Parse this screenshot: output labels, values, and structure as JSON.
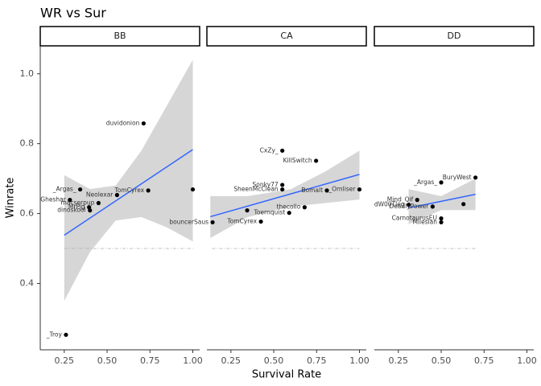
{
  "chart_data": {
    "type": "scatter",
    "title": "WR vs Sur",
    "x_label": "Survival Rate",
    "y_label": "Winrate",
    "xlim": [
      0.11,
      1.04
    ],
    "ylim": [
      0.21,
      1.08
    ],
    "xticks": [
      0.25,
      {
        "value": 0.5,
        "label": "0.50"
      },
      0.75,
      {
        "value": 1.0,
        "label": "1.00"
      }
    ],
    "yticks": [
      0.4,
      0.6,
      0.8,
      {
        "value": 1.0,
        "label": "1.0"
      }
    ],
    "point_color": "#000000",
    "fit_color": "#3366ff",
    "band_color": "#d6d6d6",
    "ref_color": "#aaaaaa",
    "panels": [
      {
        "name": "BB",
        "points": {
          "x": [
            0.713,
            0.343,
            0.283,
            0.45,
            0.395,
            0.4,
            0.558,
            0.74,
            1.0,
            0.26
          ],
          "y": [
            0.858,
            0.669,
            0.639,
            0.63,
            0.618,
            0.609,
            0.653,
            0.666,
            0.669,
            0.253
          ],
          "labels": [
            "duvidonion",
            "_Argas_",
            "Gheshar",
            "macserpup",
            "MrPig",
            "dinoskool",
            "Neolexar",
            "TomCyrex",
            null,
            "_Troy"
          ]
        },
        "fit": {
          "x": [
            0.25,
            1.0
          ],
          "y": [
            0.538,
            0.783
          ]
        },
        "band": {
          "x": [
            0.25,
            0.4,
            0.55,
            0.7,
            0.85,
            1.0
          ],
          "lower": [
            0.35,
            0.49,
            0.58,
            0.59,
            0.56,
            0.52
          ],
          "upper": [
            0.71,
            0.67,
            0.68,
            0.78,
            0.91,
            1.04
          ]
        },
        "ref_line": {
          "x": [
            0.25,
            1.0
          ],
          "y": 0.5
        }
      },
      {
        "name": "CA",
        "points": {
          "x": [
            0.55,
            0.747,
            0.55,
            0.55,
            0.81,
            1.0,
            0.68,
            0.59,
            0.143,
            0.425,
            0.345
          ],
          "y": [
            0.78,
            0.751,
            0.682,
            0.669,
            0.666,
            0.669,
            0.618,
            0.602,
            0.575,
            0.577,
            0.609
          ],
          "labels": [
            "CxZy_",
            "KillSwitch",
            "Sonky77",
            "SheenMcClean",
            "Bomalt",
            "_Ornliser",
            "thecollo",
            "Toernquist",
            "bouncerSaus",
            "TomCyrex",
            null
          ]
        },
        "fit": {
          "x": [
            0.13,
            1.0
          ],
          "y": [
            0.591,
            0.712
          ]
        },
        "band": {
          "x": [
            0.13,
            0.35,
            0.6,
            0.8,
            1.0
          ],
          "lower": [
            0.53,
            0.59,
            0.62,
            0.63,
            0.64
          ],
          "upper": [
            0.65,
            0.65,
            0.67,
            0.72,
            0.78
          ]
        },
        "ref_line": {
          "x": [
            0.14,
            1.0
          ],
          "y": 0.5
        }
      },
      {
        "name": "DD",
        "points": {
          "x": [
            0.7,
            0.5,
            0.36,
            0.31,
            0.45,
            0.63,
            0.5,
            0.5
          ],
          "y": [
            0.703,
            0.689,
            0.639,
            0.625,
            0.62,
            0.627,
            0.586,
            0.575
          ],
          "labels": [
            "BuryWest",
            "_Argas_",
            "Mind_Qif",
            "dW00Tleg",
            "DeadlyPower",
            null,
            "CarnotaurusEU",
            "Milesian"
          ]
        },
        "fit": {
          "x": [
            0.31,
            0.7
          ],
          "y": [
            0.616,
            0.655
          ]
        },
        "band": {
          "x": [
            0.31,
            0.5,
            0.7
          ],
          "lower": [
            0.57,
            0.61,
            0.61
          ],
          "upper": [
            0.67,
            0.65,
            0.7
          ]
        },
        "ref_line": {
          "x": [
            0.3,
            0.7
          ],
          "y": 0.5
        }
      }
    ]
  }
}
